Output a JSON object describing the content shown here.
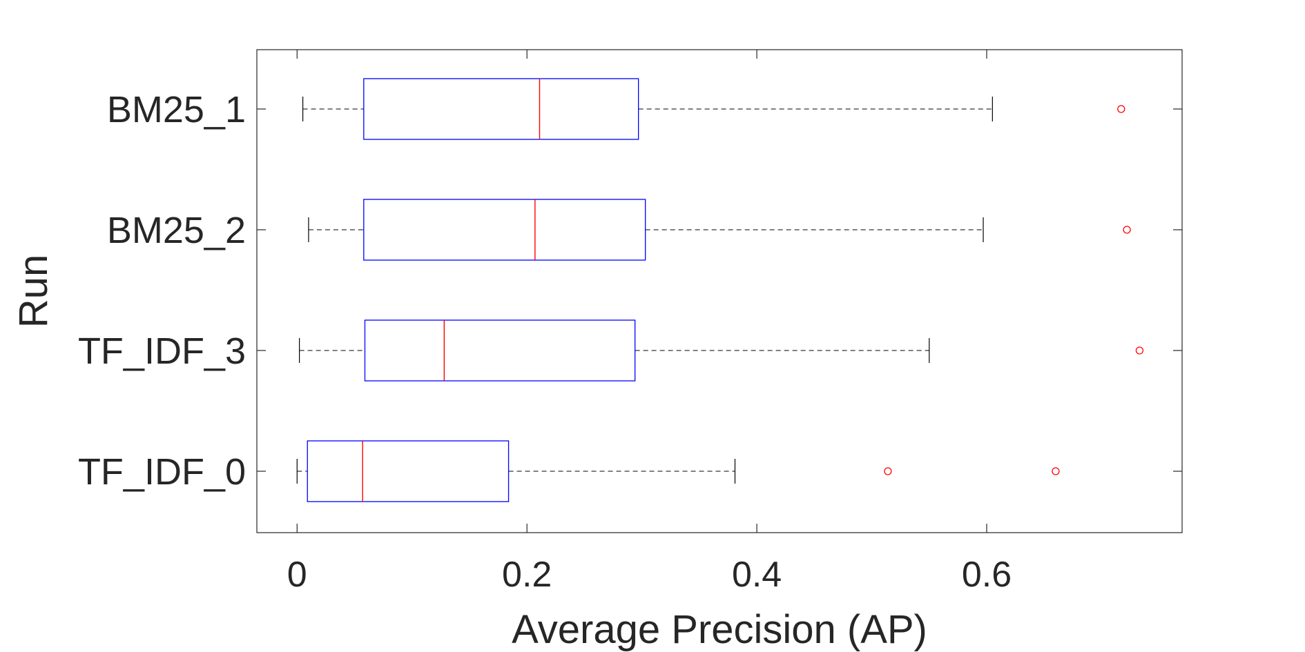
{
  "chart_data": {
    "type": "boxplot",
    "orientation": "horizontal",
    "title": "",
    "xlabel": "Average Precision (AP)",
    "ylabel": "Run",
    "xlim": [
      -0.035,
      0.77
    ],
    "xticks": [
      0,
      0.2,
      0.4,
      0.6
    ],
    "xtick_labels": [
      "0",
      "0.2",
      "0.4",
      "0.6"
    ],
    "categories": [
      "BM25_1",
      "BM25_2",
      "TF_IDF_3",
      "TF_IDF_0"
    ],
    "series": [
      {
        "category": "BM25_1",
        "whisker_low": 0.005,
        "q1": 0.058,
        "median": 0.211,
        "q3": 0.297,
        "whisker_high": 0.605,
        "outliers": [
          0.717
        ]
      },
      {
        "category": "BM25_2",
        "whisker_low": 0.01,
        "q1": 0.058,
        "median": 0.207,
        "q3": 0.303,
        "whisker_high": 0.597,
        "outliers": [
          0.722
        ]
      },
      {
        "category": "TF_IDF_3",
        "whisker_low": 0.002,
        "q1": 0.059,
        "median": 0.128,
        "q3": 0.294,
        "whisker_high": 0.55,
        "outliers": [
          0.733
        ]
      },
      {
        "category": "TF_IDF_0",
        "whisker_low": 0.0,
        "q1": 0.009,
        "median": 0.057,
        "q3": 0.184,
        "whisker_high": 0.381,
        "outliers": [
          0.514,
          0.66
        ]
      }
    ],
    "grid": false,
    "legend": "none",
    "colors": {
      "box": "#0000ff",
      "median": "#ff0000",
      "outlier": "#ff0000",
      "whisker": "#000000",
      "axes": "#262626"
    }
  }
}
